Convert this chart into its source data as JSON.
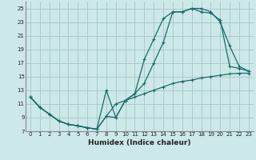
{
  "xlabel": "Humidex (Indice chaleur)",
  "bg_color": "#cce8e8",
  "grid_color": "#aacccc",
  "line_color": "#1a6b6b",
  "xlim": [
    -0.5,
    23.5
  ],
  "ylim": [
    7,
    26
  ],
  "xticks": [
    0,
    1,
    2,
    3,
    4,
    5,
    6,
    7,
    8,
    9,
    10,
    11,
    12,
    13,
    14,
    15,
    16,
    17,
    18,
    19,
    20,
    21,
    22,
    23
  ],
  "yticks": [
    7,
    9,
    11,
    13,
    15,
    17,
    19,
    21,
    23,
    25
  ],
  "line1_x": [
    0,
    1,
    2,
    3,
    4,
    5,
    6,
    7,
    8,
    9,
    10,
    11,
    12,
    13,
    14,
    15,
    16,
    17,
    18,
    19,
    20,
    21,
    22,
    23
  ],
  "line1_y": [
    12.0,
    10.5,
    9.5,
    8.5,
    8.0,
    7.8,
    7.5,
    7.3,
    9.2,
    11.0,
    11.5,
    12.0,
    12.5,
    13.0,
    13.5,
    14.0,
    14.3,
    14.5,
    14.8,
    15.0,
    15.2,
    15.4,
    15.5,
    15.5
  ],
  "line2_x": [
    0,
    1,
    2,
    3,
    4,
    5,
    6,
    7,
    8,
    9,
    10,
    11,
    12,
    13,
    14,
    15,
    16,
    17,
    18,
    19,
    20,
    21,
    22,
    23
  ],
  "line2_y": [
    12.0,
    10.5,
    9.5,
    8.5,
    8.0,
    7.8,
    7.5,
    7.3,
    13.0,
    9.0,
    11.5,
    12.5,
    17.5,
    20.5,
    23.5,
    24.5,
    24.5,
    25.0,
    25.0,
    24.5,
    23.0,
    19.5,
    16.5,
    15.8
  ],
  "line3_x": [
    0,
    1,
    2,
    3,
    4,
    5,
    6,
    7,
    8,
    9,
    10,
    11,
    12,
    13,
    14,
    15,
    16,
    17,
    18,
    19,
    20,
    21,
    22,
    23
  ],
  "line3_y": [
    12.0,
    10.5,
    9.5,
    8.5,
    8.0,
    7.8,
    7.5,
    7.3,
    9.2,
    9.0,
    11.5,
    12.5,
    14.0,
    17.0,
    20.0,
    24.5,
    24.5,
    25.0,
    24.5,
    24.3,
    23.3,
    16.5,
    16.2,
    15.8
  ]
}
